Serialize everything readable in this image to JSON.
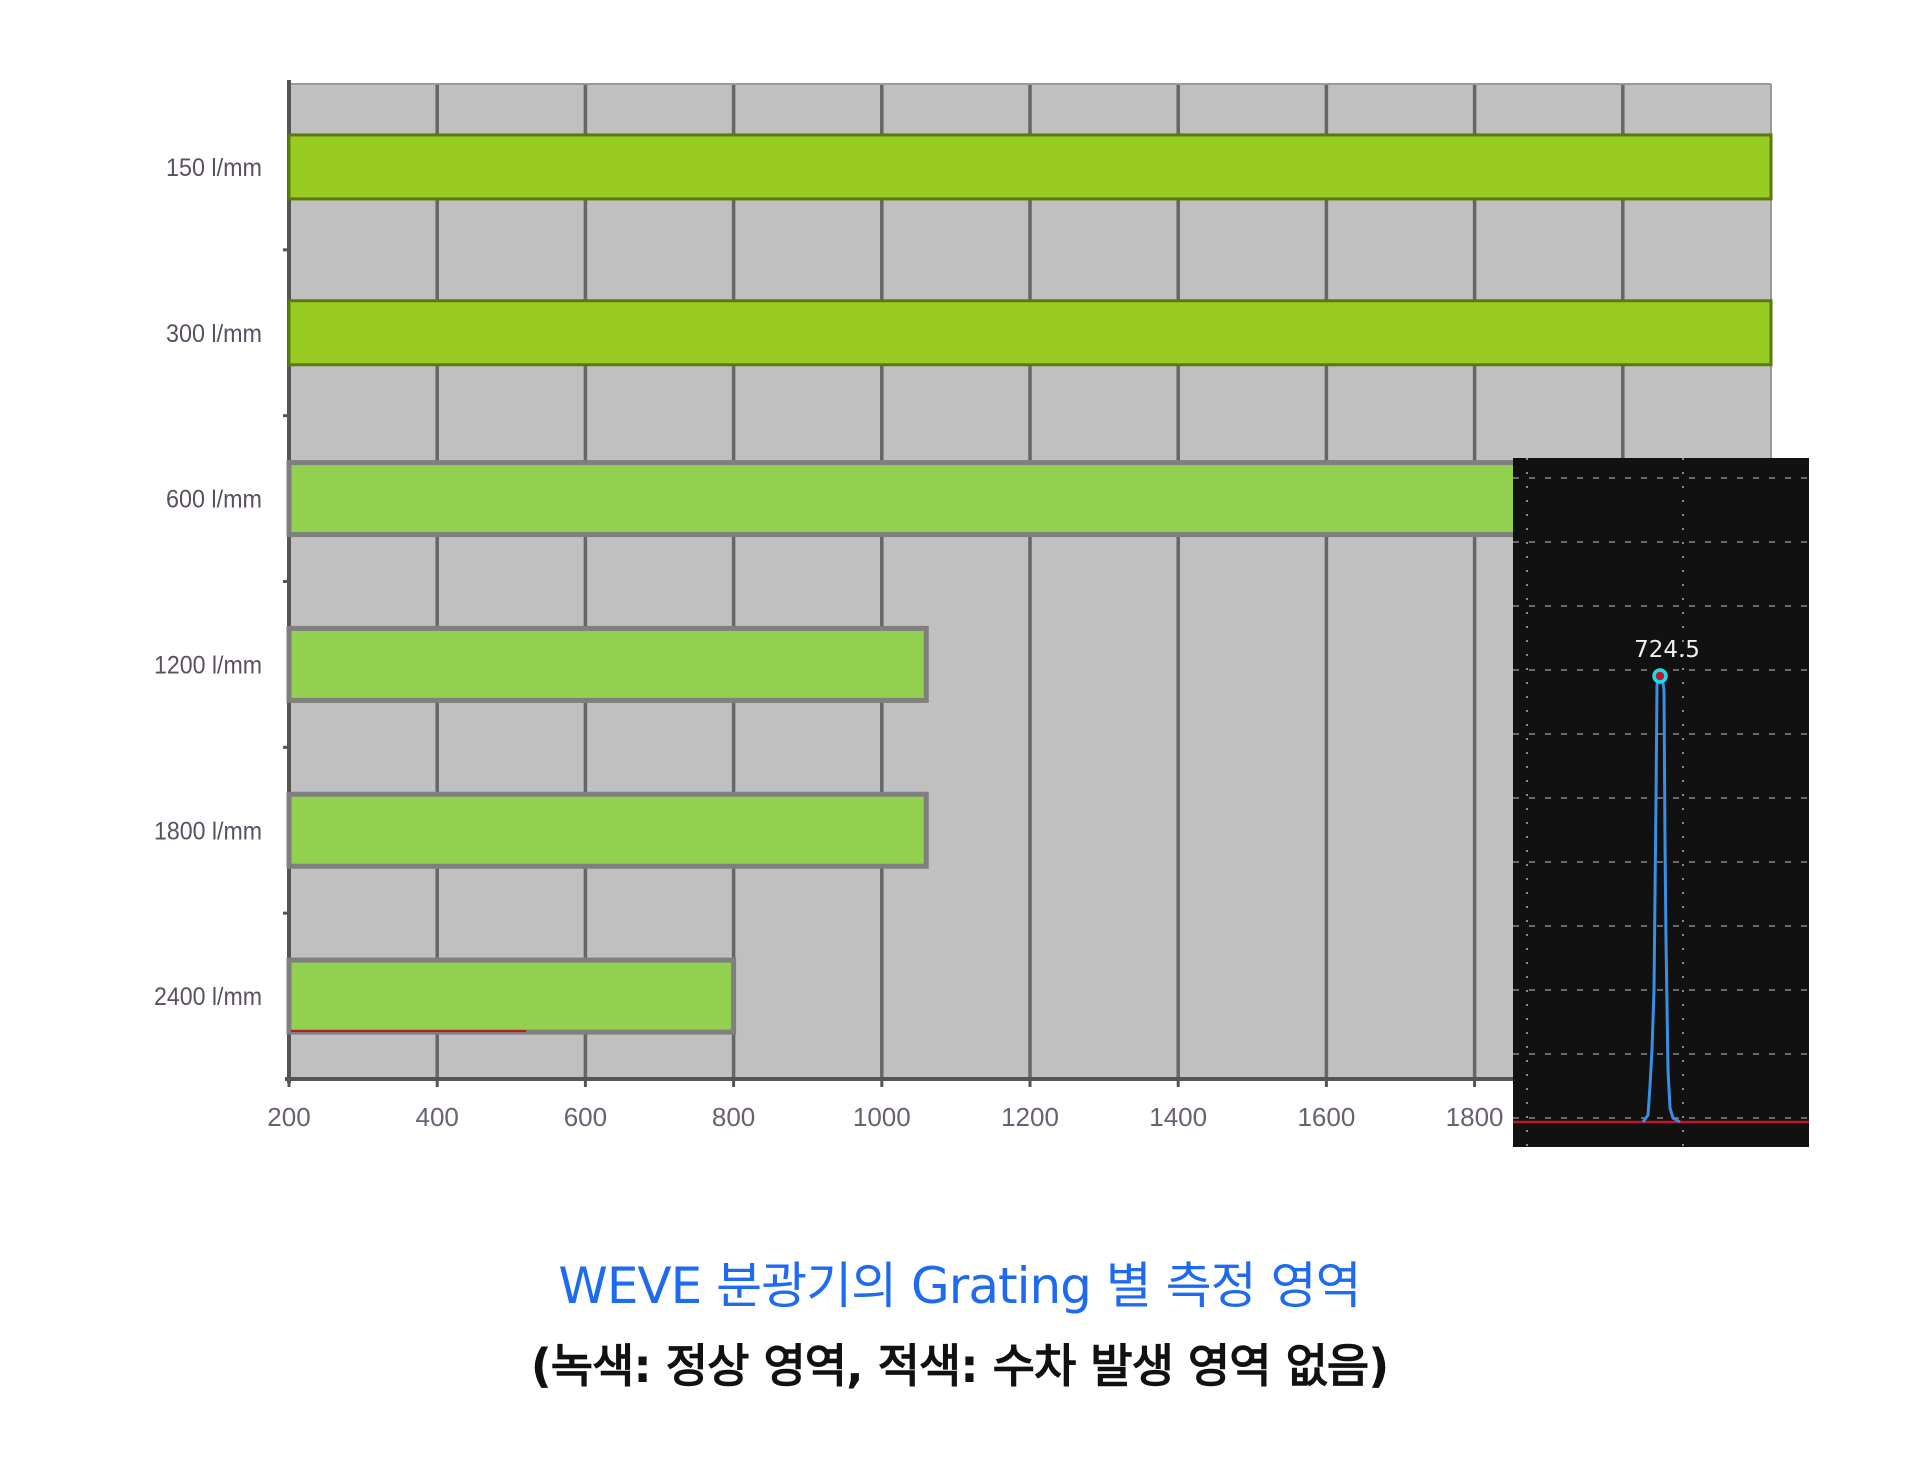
{
  "chart_data": {
    "type": "bar",
    "orientation": "horizontal",
    "categories": [
      "150 l/mm",
      "300 l/mm",
      "600 l/mm",
      "1200 l/mm",
      "1800 l/mm",
      "2400 l/mm"
    ],
    "values": [
      2200,
      2200,
      2100,
      1060,
      1060,
      800
    ],
    "xlim": [
      200,
      2200
    ],
    "xticks": [
      200,
      400,
      600,
      800,
      1000,
      1200,
      1400,
      1600,
      1800
    ],
    "grid": true,
    "colors": {
      "plot_background": "#c0c0c0",
      "grid": "#666666",
      "bar_bright": "#99cc22",
      "bar": "#92d050",
      "bar_border": "#7f7f7f"
    },
    "inset": {
      "type": "line",
      "description_of_series": "single spectral peak",
      "peak_label": "724.5",
      "colors": {
        "background": "#111111",
        "line": "#3a8ee6",
        "marker": "#19e0e8",
        "baseline": "#c0152a"
      }
    }
  },
  "caption": {
    "title": "WEVE 분광기의 Grating 별 측정 영역",
    "subtitle": "(녹색: 정상 영역, 적색: 수차 발생 영역 없음)"
  }
}
